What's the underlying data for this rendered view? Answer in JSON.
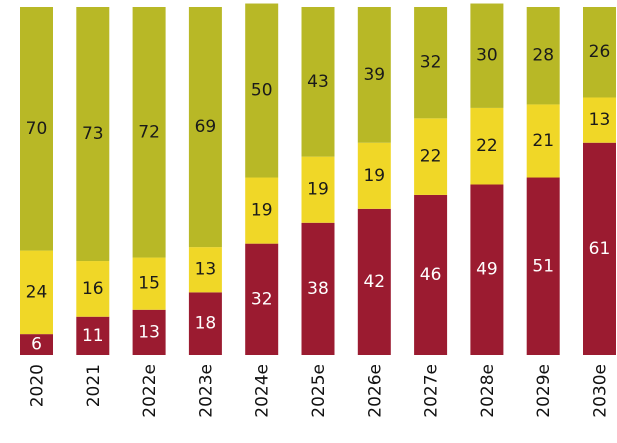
{
  "chart_data": {
    "type": "bar",
    "stacked": true,
    "categories": [
      "2020",
      "2021",
      "2022e",
      "2023e",
      "2024e",
      "2025e",
      "2026e",
      "2027e",
      "2028e",
      "2029e",
      "2030e"
    ],
    "series": [
      {
        "values": [
          6,
          11,
          13,
          18,
          32,
          38,
          42,
          46,
          49,
          51,
          61
        ],
        "color": "#9b1b30",
        "label_color": "#ffffff"
      },
      {
        "values": [
          24,
          16,
          15,
          13,
          19,
          19,
          19,
          22,
          22,
          21,
          13
        ],
        "color": "#f0d727",
        "label_color": "#1a1a1a"
      },
      {
        "values": [
          70,
          73,
          72,
          69,
          50,
          43,
          39,
          32,
          30,
          28,
          26
        ],
        "color": "#b8b826",
        "label_color": "#1a1a1a"
      }
    ],
    "ylim": [
      0,
      100
    ],
    "grid": false,
    "legend": "none",
    "title": "",
    "xlabel": "",
    "ylabel": ""
  }
}
